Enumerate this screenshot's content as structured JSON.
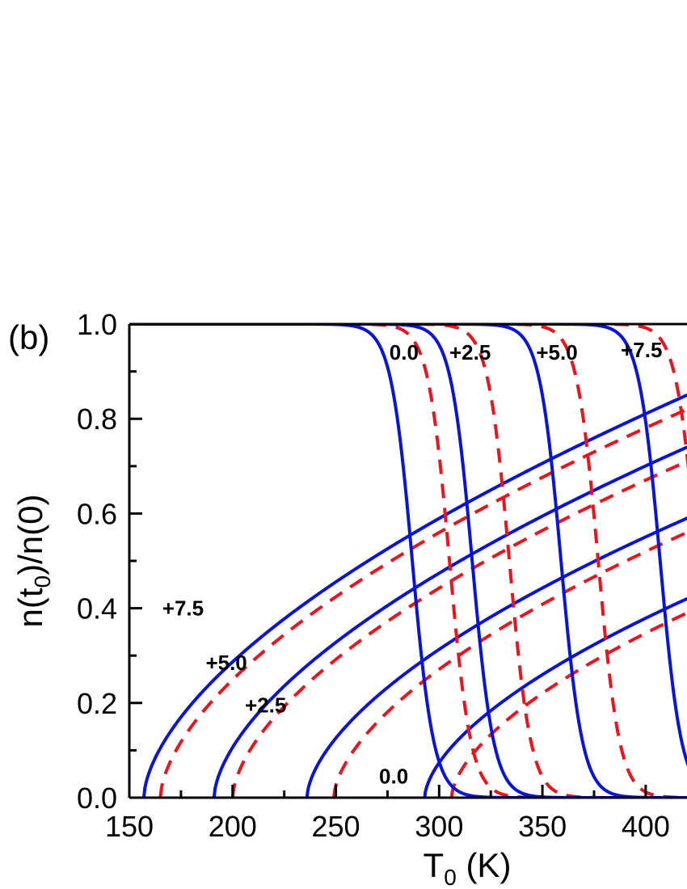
{
  "chart_data": {
    "type": "line",
    "panel_label": "(b)",
    "xlabel": {
      "main": "T",
      "sub": "0",
      "unit": " (K)"
    },
    "ylabel": {
      "pre": "n(t",
      "sub": "0",
      "post": ")/n(0)"
    },
    "xlim": [
      150,
      420
    ],
    "ylim": [
      0.0,
      1.0
    ],
    "x_ticks": [
      "150",
      "200",
      "250",
      "300",
      "350",
      "400"
    ],
    "y_ticks": [
      "0.0",
      "0.2",
      "0.4",
      "0.6",
      "0.8",
      "1.0"
    ],
    "colors": {
      "solid": "#0a14d6",
      "dashed": "#e8141e",
      "axis": "#000000"
    },
    "falling_curves": {
      "description": "steep drop from 1.0 to 0.0",
      "series": [
        {
          "label": "0.0",
          "solid": {
            "t_half": 287,
            "width": 5.2
          },
          "dashed": {
            "t_half": 305,
            "width": 5.2
          }
        },
        {
          "label": "+2.5",
          "solid": {
            "t_half": 316,
            "width": 5.2
          },
          "dashed": {
            "t_half": 334,
            "width": 5.2
          }
        },
        {
          "label": "+5.0",
          "solid": {
            "t_half": 359,
            "width": 5.2
          },
          "dashed": {
            "t_half": 377,
            "width": 5.2
          }
        },
        {
          "label": "+7.5",
          "solid": {
            "t_half": 407,
            "width": 5.2
          },
          "dashed": {
            "t_half": 425,
            "width": 5.2
          }
        }
      ]
    },
    "rising_curves": {
      "description": "rising from zero at onset temperature",
      "series": [
        {
          "label": "+7.5",
          "solid": {
            "onset": 157,
            "value_at_420": 0.85
          },
          "dashed": {
            "onset": 165,
            "value_at_420": 0.82
          }
        },
        {
          "label": "+5.0",
          "solid": {
            "onset": 191,
            "value_at_420": 0.74
          },
          "dashed": {
            "onset": 200,
            "value_at_420": 0.71
          }
        },
        {
          "label": "+2.5",
          "solid": {
            "onset": 236,
            "value_at_420": 0.59
          },
          "dashed": {
            "onset": 249,
            "value_at_420": 0.56
          }
        },
        {
          "label": "0.0",
          "solid": {
            "onset": 293,
            "value_at_420": 0.42
          },
          "dashed": {
            "onset": 306,
            "value_at_420": 0.39
          }
        }
      ]
    },
    "annotations": [
      {
        "text": "0.0",
        "x": 283,
        "y": 0.925
      },
      {
        "text": "+2.5",
        "x": 315,
        "y": 0.925
      },
      {
        "text": "+5.0",
        "x": 357,
        "y": 0.925
      },
      {
        "text": "+7.5",
        "x": 398,
        "y": 0.93
      },
      {
        "text": "+7.5",
        "x": 176,
        "y": 0.385
      },
      {
        "text": "+5.0",
        "x": 197,
        "y": 0.27
      },
      {
        "text": "+2.5",
        "x": 216,
        "y": 0.18
      },
      {
        "text": "0.0",
        "x": 278,
        "y": 0.03
      }
    ]
  }
}
